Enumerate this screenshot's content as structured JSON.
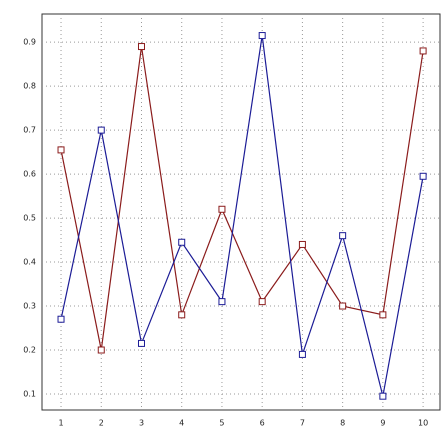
{
  "chart_data": {
    "type": "line",
    "x": [
      1,
      2,
      3,
      4,
      5,
      6,
      7,
      8,
      9,
      10
    ],
    "series": [
      {
        "color": "#8b1c1c",
        "values": [
          0.655,
          0.2,
          0.89,
          0.28,
          0.52,
          0.31,
          0.44,
          0.3,
          0.28,
          0.88
        ]
      },
      {
        "color": "#1c1c96",
        "values": [
          0.27,
          0.7,
          0.215,
          0.445,
          0.31,
          0.915,
          0.19,
          0.46,
          0.095,
          0.595
        ]
      }
    ],
    "xlim": [
      0.527,
      10.42
    ],
    "xticks": [
      1,
      2,
      3,
      4,
      5,
      6,
      7,
      8,
      9,
      10
    ],
    "ylim": [
      0.0636,
      0.964
    ],
    "yticks": [
      0.1,
      0.2,
      0.3,
      0.4,
      0.5,
      0.6,
      0.7,
      0.8,
      0.9
    ],
    "grid": true
  }
}
